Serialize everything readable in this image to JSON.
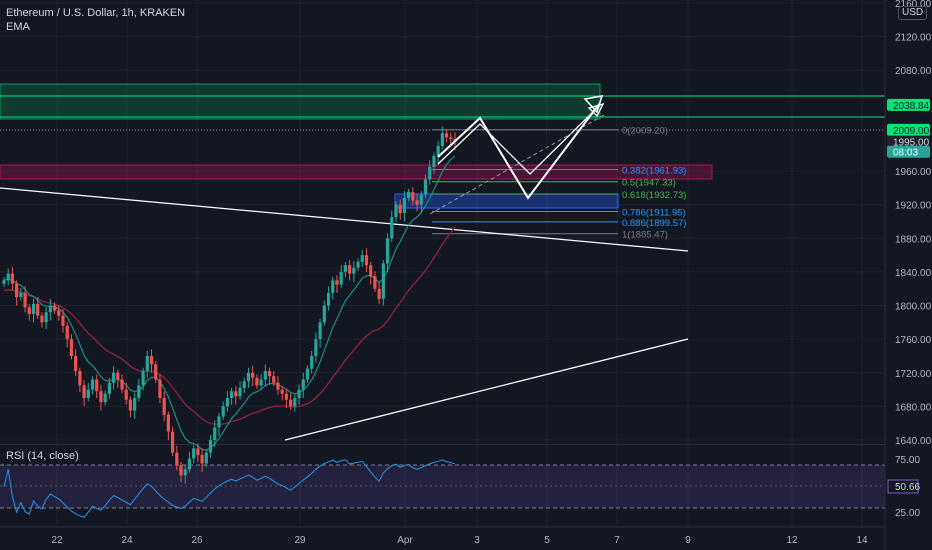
{
  "header": {
    "symbol_title": "Ethereum / U.S. Dollar, 1h, KRAKEN",
    "indicator_ema": "EMA",
    "currency": "USD"
  },
  "rsi": {
    "title": "RSI (14, close)",
    "upper": "75.00",
    "lower": "25.00",
    "current": "50.66",
    "current_value": 50.66,
    "upper_value": 75,
    "lower_value": 25
  },
  "price_axis": {
    "ticks": [
      "2160.00",
      "2120.00",
      "2080.00",
      "1960.00",
      "1920.00",
      "1880.00",
      "1840.00",
      "1800.00",
      "1760.00",
      "1720.00",
      "1680.00",
      "1640.00"
    ],
    "tick_values": [
      2160,
      2120,
      2080,
      1960,
      1920,
      1880,
      1840,
      1800,
      1760,
      1720,
      1680,
      1640
    ],
    "tags": [
      {
        "label": "2038.84",
        "value": 2038.84,
        "color": "#00e676",
        "text_color": "#131722"
      },
      {
        "label": "2009.00",
        "value": 2009.0,
        "color": "#00e676",
        "text_color": "#131722"
      },
      {
        "label": "1995.00",
        "value": 1995.0,
        "color": "#1e222d",
        "text_color": "#d1d4dc"
      },
      {
        "label": "08:03",
        "value": 1983.0,
        "color": "#26a69a",
        "text_color": "#ffffff"
      }
    ]
  },
  "time_axis": {
    "labels": [
      "22",
      "24",
      "26",
      "29",
      "Apr",
      "3",
      "5",
      "7",
      "9",
      "12",
      "14"
    ]
  },
  "fib_levels": [
    {
      "label": "0(2009.20)",
      "value": 2009.2,
      "color": "#787b86"
    },
    {
      "label": "0.382(1961.93)",
      "value": 1961.93,
      "color": "#2196f3"
    },
    {
      "label": "0.5(1947.33)",
      "value": 1947.33,
      "color": "#4caf50"
    },
    {
      "label": "0.618(1932.73)",
      "value": 1932.73,
      "color": "#4caf50"
    },
    {
      "label": "0.786(1911.95)",
      "value": 1911.95,
      "color": "#2196f3"
    },
    {
      "label": "0.886(1899.57)",
      "value": 1899.57,
      "color": "#2196f3"
    },
    {
      "label": "1(1885.47)",
      "value": 1885.47,
      "color": "#787b86"
    }
  ],
  "colors": {
    "background": "#131722",
    "bull": "#26a69a",
    "bear": "#ef5350",
    "ema_fast": "#1b8d7e",
    "ema_slow": "#8a1f3a",
    "rsi_line": "#2196f3",
    "rsi_band": "#7e57c2",
    "resistance_zone": "#00e676",
    "support_zone_pink": "#ad1457",
    "support_zone_blue": "#2962ff"
  },
  "candles_ohlc": [
    1830,
    1838,
    1826,
    1810,
    1815,
    1798,
    1790,
    1802,
    1788,
    1780,
    1792,
    1800,
    1794,
    1788,
    1776,
    1760,
    1740,
    1722,
    1705,
    1690,
    1700,
    1712,
    1698,
    1685,
    1695,
    1708,
    1720,
    1712,
    1700,
    1688,
    1675,
    1690,
    1705,
    1722,
    1740,
    1730,
    1712,
    1690,
    1670,
    1650,
    1625,
    1610,
    1598,
    1605,
    1618,
    1630,
    1622,
    1612,
    1625,
    1640,
    1655,
    1668,
    1680,
    1690,
    1698,
    1692,
    1702,
    1710,
    1720,
    1714,
    1705,
    1712,
    1722,
    1716,
    1708,
    1700,
    1695,
    1688,
    1680,
    1690,
    1700,
    1712,
    1725,
    1740,
    1760,
    1780,
    1800,
    1815,
    1830,
    1825,
    1840,
    1848,
    1838,
    1845,
    1852,
    1860,
    1848,
    1835,
    1820,
    1808,
    1850,
    1880,
    1905,
    1920,
    1910,
    1928,
    1935,
    1925,
    1920,
    1932,
    1950,
    1965,
    1978,
    1990,
    2005,
    2000,
    1998,
    1995
  ]
}
